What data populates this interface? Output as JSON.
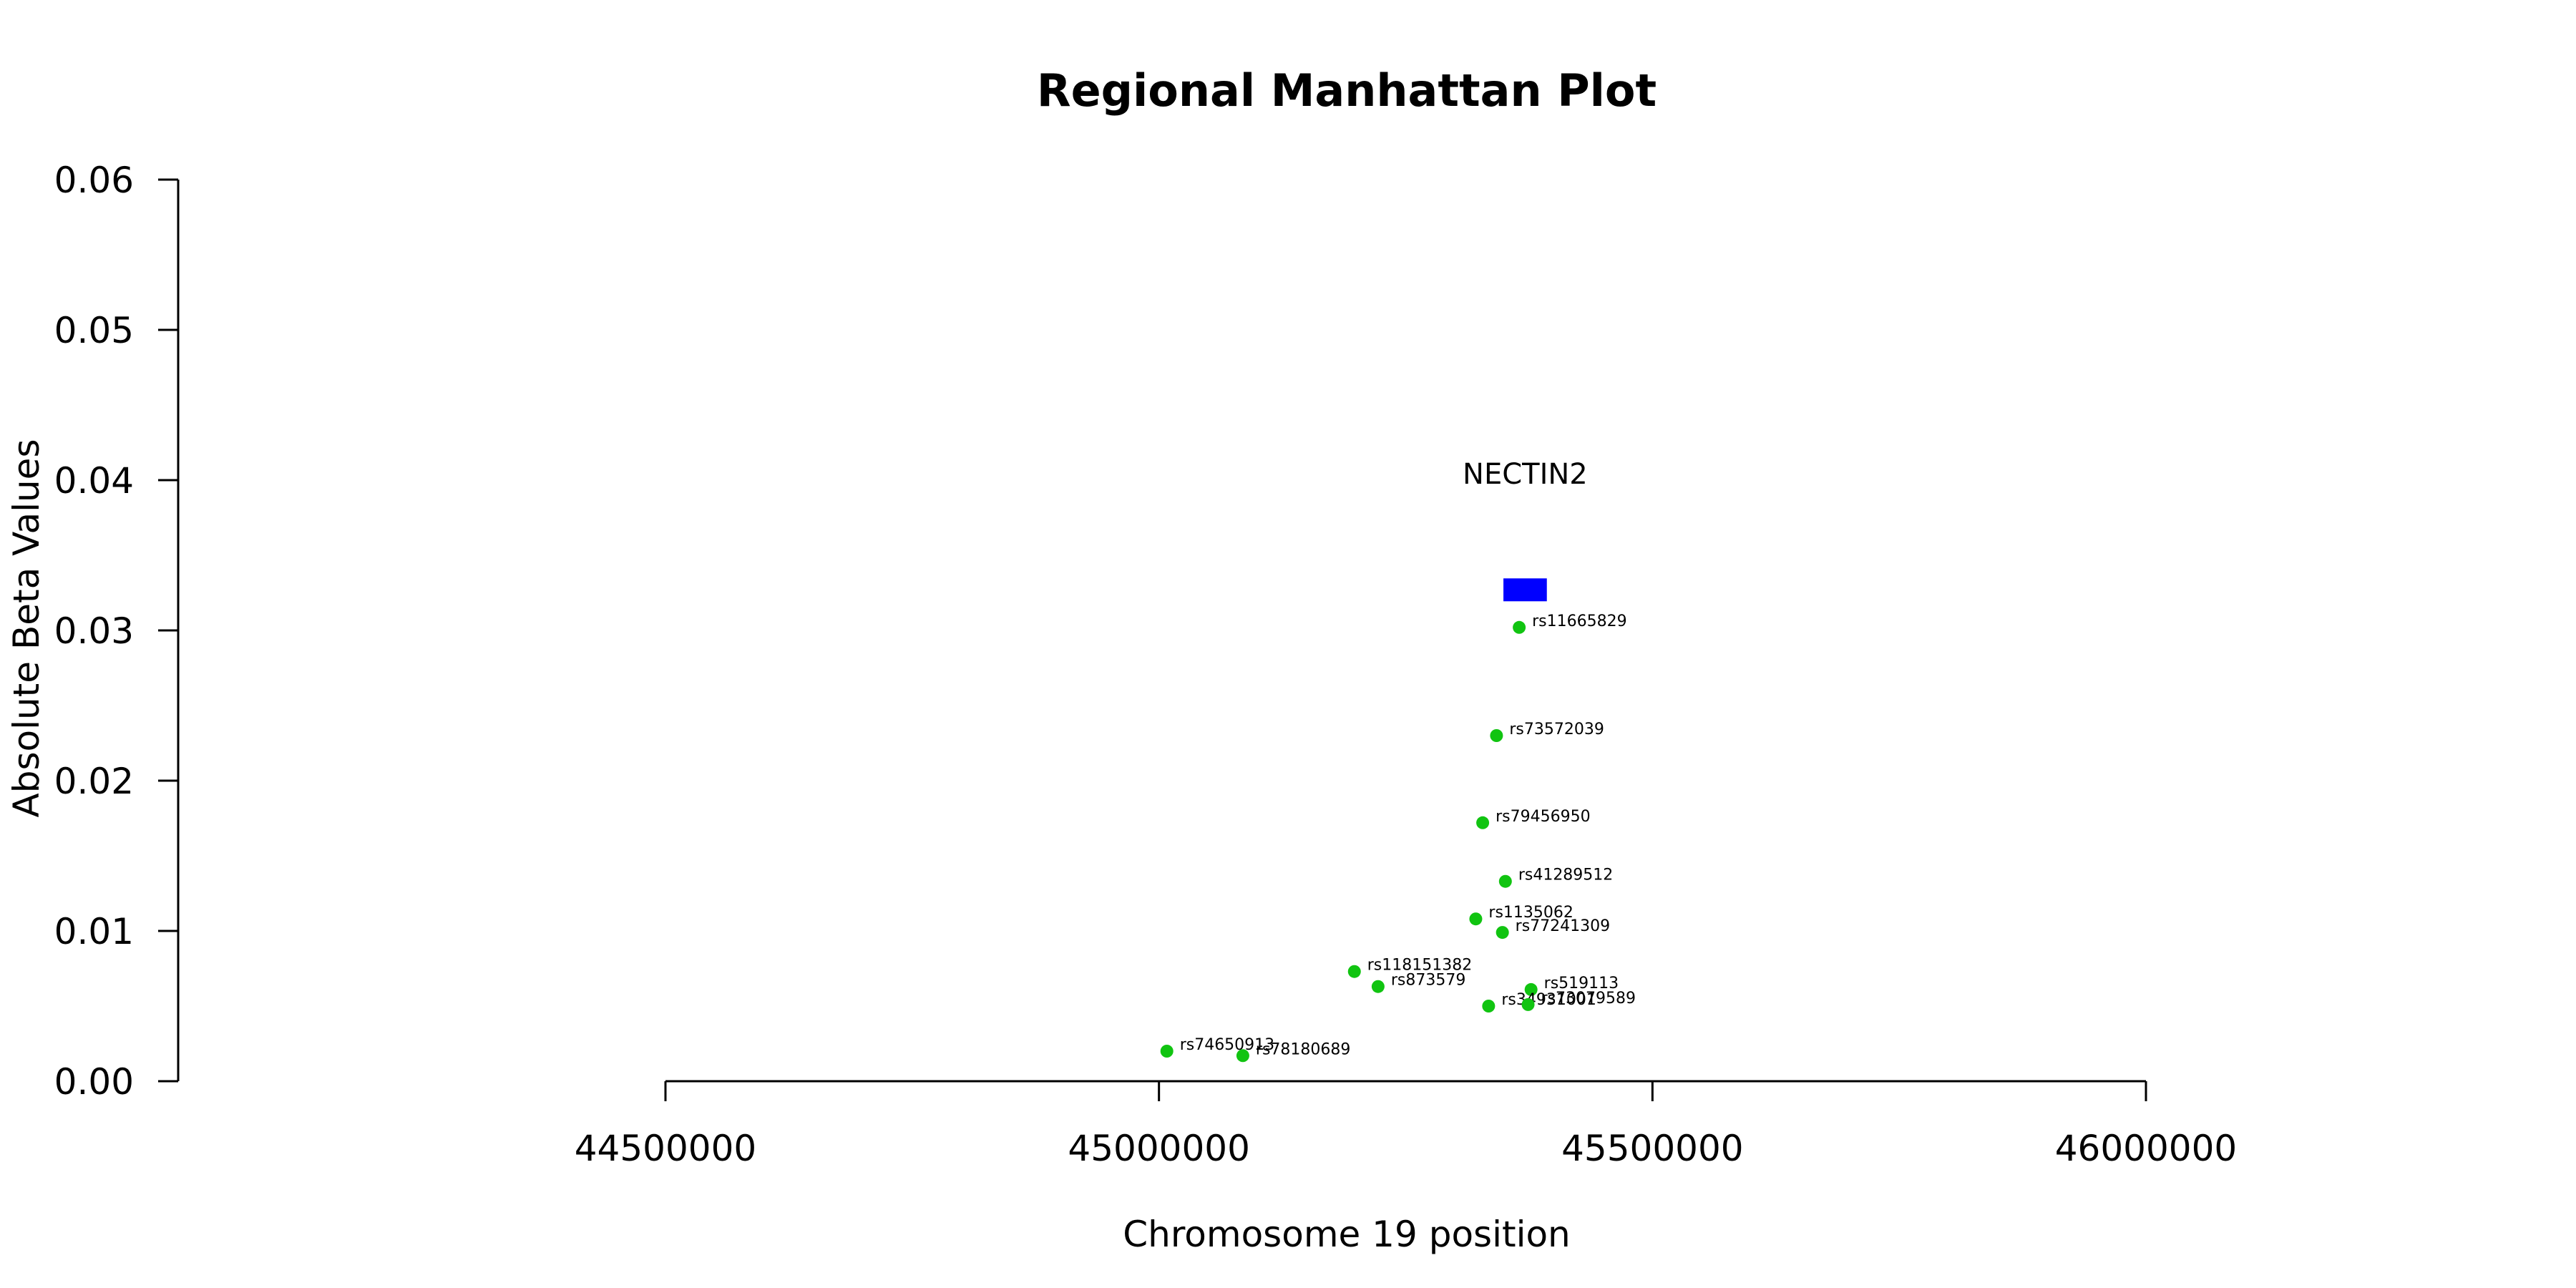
{
  "chart_data": {
    "type": "scatter",
    "title": "Regional Manhattan Plot",
    "xlabel": "Chromosome 19 position",
    "ylabel": "Absolute Beta Values",
    "xlim": [
      44000000,
      46500000
    ],
    "ylim": [
      0,
      0.06
    ],
    "x_ticks": [
      44500000,
      45000000,
      45500000,
      46000000
    ],
    "x_tick_labels": [
      "44500000",
      "45000000",
      "45500000",
      "46000000"
    ],
    "y_ticks": [
      0,
      0.01,
      0.02,
      0.03,
      0.04,
      0.05,
      0.06
    ],
    "y_tick_labels": [
      "0.00",
      "0.01",
      "0.02",
      "0.03",
      "0.04",
      "0.05",
      "0.06"
    ],
    "point_color": "#11c411",
    "points": [
      {
        "label": "rs11665829",
        "x": 45365000,
        "y": 0.0302
      },
      {
        "label": "rs73572039",
        "x": 45342000,
        "y": 0.023
      },
      {
        "label": "rs79456950",
        "x": 45328000,
        "y": 0.0172
      },
      {
        "label": "rs41289512",
        "x": 45351000,
        "y": 0.0133
      },
      {
        "label": "rs1135062",
        "x": 45321000,
        "y": 0.0108
      },
      {
        "label": "rs77241309",
        "x": 45348000,
        "y": 0.0099
      },
      {
        "label": "rs118151382",
        "x": 45198000,
        "y": 0.0073
      },
      {
        "label": "rs873579",
        "x": 45222000,
        "y": 0.0063
      },
      {
        "label": "rs519113",
        "x": 45377000,
        "y": 0.0061
      },
      {
        "label": "rs34931001",
        "x": 45334000,
        "y": 0.005
      },
      {
        "label": "rs73079589",
        "x": 45374000,
        "y": 0.0051
      },
      {
        "label": "rs74650913",
        "x": 45008000,
        "y": 0.002
      },
      {
        "label": "rs78180689",
        "x": 45085000,
        "y": 0.0017
      }
    ],
    "genes": [
      {
        "name": "NECTIN2",
        "start": 45349000,
        "end": 45393000,
        "y": 0.0327,
        "color": "#0000ff"
      }
    ]
  }
}
